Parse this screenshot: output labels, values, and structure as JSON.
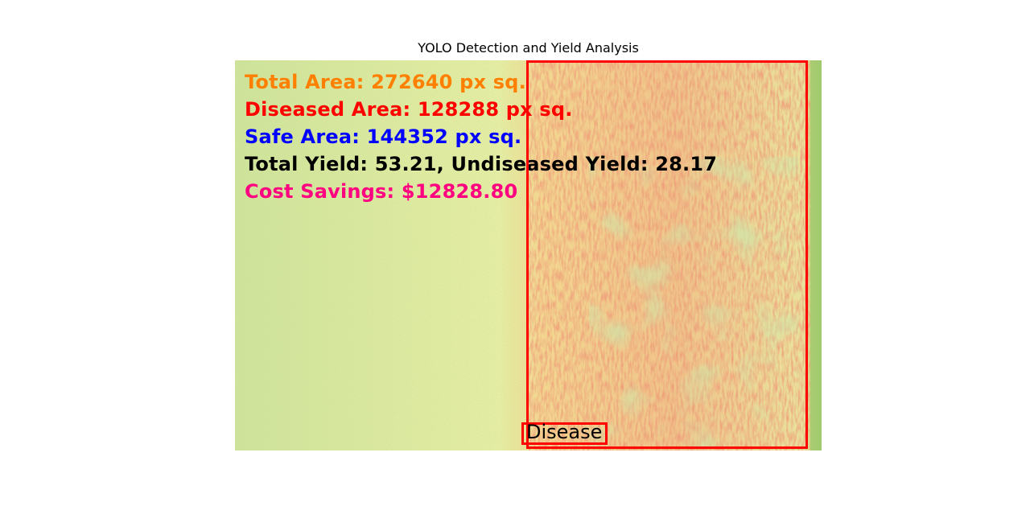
{
  "figure": {
    "title": "YOLO Detection and Yield Analysis"
  },
  "overlay": {
    "total_area": "Total Area: 272640 px sq.",
    "diseased_area": "Diseased Area: 128288 px sq.",
    "safe_area": "Safe Area: 144352 px sq.",
    "yield": "Total Yield: 53.21, Undiseased Yield: 28.17",
    "cost_savings": "Cost Savings: $12828.80"
  },
  "overlay_colors": {
    "total_area": "#ff7f00",
    "diseased_area": "#ff0000",
    "safe_area": "#0000ff",
    "yield": "#000000",
    "cost_savings": "#ff0080"
  },
  "detection": {
    "label": "Disease",
    "box_color": "#ff0000"
  }
}
